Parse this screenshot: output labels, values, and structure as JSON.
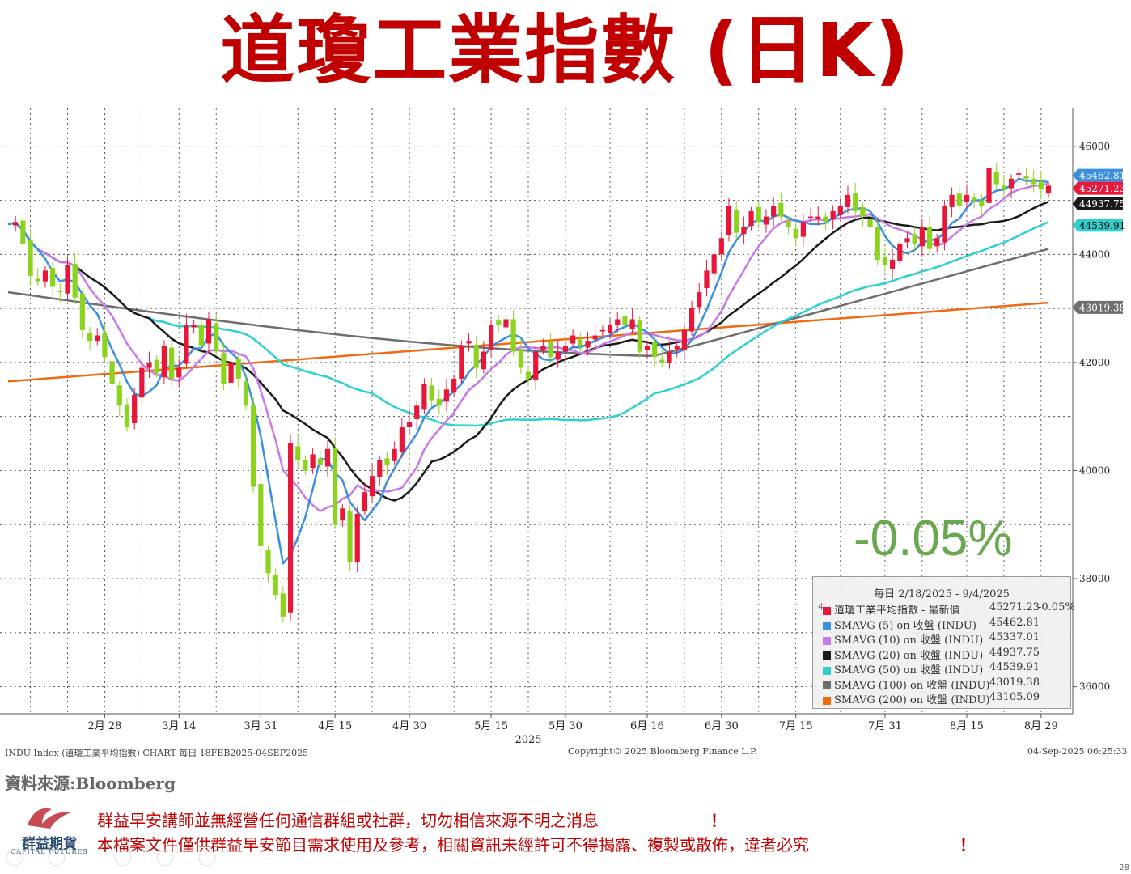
{
  "page": {
    "title": "道瓊工業指數 (日K)",
    "change_pct": "-0.05%",
    "source": "資料來源:Bloomberg",
    "disclaimer_1": "群益早安講師並無經營任何通信群組或社群，切勿相信來源不明之消息",
    "disclaimer_2": "本檔案文件僅供群益早安節目需求使用及參考，相關資訊未經許可不得揭露、複製或散佈，違者必究",
    "exclaim": "！",
    "logo_name": "群益期貨",
    "logo_sub": "CAPITAL FUTURES",
    "page_number": "28"
  },
  "footer": {
    "left": "INDU Index (道瓊工業平均指數) CHART  每日 18FEB2025-04SEP2025",
    "center": "Copyright© 2025 Bloomberg Finance L.P.",
    "right": "04-Sep-2025 06:25:33"
  },
  "legend": {
    "header": "每日 2/18/2025 - 9/4/2025",
    "marker": "中",
    "rows": [
      {
        "label": "道瓊工業平均指數 - 最新價",
        "value": "45271.23",
        "change": "-0.05%",
        "color": "#e8173a"
      },
      {
        "label": "SMAVG (5)  on 收盤 (INDU)",
        "value": "45462.81",
        "change": "",
        "color": "#3a8fe0"
      },
      {
        "label": "SMAVG (10)  on 收盤 (INDU)",
        "value": "45337.01",
        "change": "",
        "color": "#c879e8"
      },
      {
        "label": "SMAVG (20)  on 收盤 (INDU)",
        "value": "44937.75",
        "change": "",
        "color": "#1a1a1a"
      },
      {
        "label": "SMAVG (50)  on 收盤 (INDU)",
        "value": "44539.91",
        "change": "",
        "color": "#2ecfcf"
      },
      {
        "label": "SMAVG (100)  on 收盤 (INDU)",
        "value": "43019.38",
        "change": "",
        "color": "#6e6e6e"
      },
      {
        "label": "SMAVG (200)  on 收盤 (INDU)",
        "value": "43105.09",
        "change": "",
        "color": "#f06a10"
      }
    ]
  },
  "chart_data": {
    "type": "candlestick",
    "y_range": [
      35500,
      46700
    ],
    "y_ticks": [
      "46000",
      "44000",
      "42000",
      "40000",
      "38000",
      "36000"
    ],
    "y_tick_values": [
      46000,
      44000,
      42000,
      40000,
      38000,
      36000
    ],
    "x_labels": [
      {
        "label": "2月 28",
        "i": 13
      },
      {
        "label": "3月 14",
        "i": 23
      },
      {
        "label": "3月 31",
        "i": 34
      },
      {
        "label": "4月 15",
        "i": 44
      },
      {
        "label": "4月 30",
        "i": 54
      },
      {
        "label": "5月 15",
        "i": 65
      },
      {
        "label": "5月 30",
        "i": 75
      },
      {
        "label": "6月 16",
        "i": 86
      },
      {
        "label": "6月 30",
        "i": 96
      },
      {
        "label": "7月 15",
        "i": 106
      },
      {
        "label": "7月 31",
        "i": 118
      },
      {
        "label": "8月 15",
        "i": 129
      },
      {
        "label": "8月 29",
        "i": 139
      }
    ],
    "year_label": "2025",
    "last_value_tags": [
      {
        "value": "45462.81",
        "y": 45462.81,
        "bg": "#3a8fe0",
        "fg": "#ffffff"
      },
      {
        "value": "45271.23",
        "y": 45271.23,
        "bg": "#e8173a",
        "fg": "#ffffff"
      },
      {
        "value": "44937.75",
        "y": 44937.75,
        "bg": "#1a1a1a",
        "fg": "#ffffff"
      },
      {
        "value": "44539.91",
        "y": 44539.91,
        "bg": "#2ecfcf",
        "fg": "#000000"
      },
      {
        "value": "43019.38",
        "y": 43019.38,
        "bg": "#6e6e6e",
        "fg": "#ffffff"
      }
    ],
    "closes": [
      44560,
      44600,
      44200,
      43600,
      43500,
      43700,
      43400,
      43300,
      43800,
      43200,
      42600,
      42400,
      42500,
      42100,
      41600,
      41200,
      40800,
      41400,
      41900,
      42000,
      41800,
      42300,
      41700,
      41900,
      42700,
      42700,
      42300,
      42800,
      42200,
      41600,
      42000,
      41700,
      41200,
      39700,
      38600,
      38100,
      37700,
      37300,
      40500,
      40200,
      40000,
      40300,
      40100,
      40400,
      39000,
      39300,
      38300,
      39200,
      39600,
      39900,
      40200,
      40100,
      40400,
      40800,
      40900,
      41200,
      41600,
      41300,
      41200,
      41500,
      41700,
      42300,
      42400,
      41900,
      42200,
      42700,
      42700,
      42800,
      42200,
      41900,
      41700,
      42200,
      42300,
      42100,
      42200,
      42300,
      42500,
      42300,
      42400,
      42500,
      42600,
      42700,
      42800,
      42700,
      42800,
      42200,
      42300,
      42100,
      42000,
      42200,
      42300,
      42600,
      43000,
      43300,
      43700,
      44000,
      44300,
      44900,
      44400,
      44500,
      44800,
      44600,
      44700,
      44900,
      44700,
      44500,
      44300,
      44600,
      44700,
      44700,
      44600,
      44800,
      44900,
      45100,
      44800,
      44700,
      44500,
      43900,
      43800,
      43900,
      44200,
      44300,
      44200,
      44500,
      44100,
      44300,
      44900,
      45100,
      44900,
      45100,
      45000,
      44900,
      45600,
      45300,
      45200,
      45400,
      45500,
      45400,
      45300,
      45200,
      45271
    ]
  }
}
